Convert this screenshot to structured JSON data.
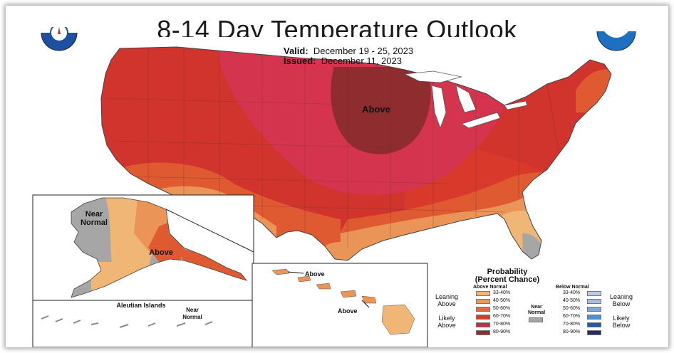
{
  "title": "8-14 Day Temperature Outlook",
  "valid_label": "Valid:",
  "valid_value": "December 19 - 25, 2023",
  "issued_label": "Issued:",
  "issued_value": "December 11, 2023",
  "map_labels": {
    "conus_above": "Above",
    "alaska_above": "Above",
    "alaska_near_1": "Near",
    "alaska_near_2": "Normal",
    "aleutian": "Aleutian Islands",
    "aleutian_near_1": "Near",
    "aleutian_near_2": "Normal",
    "hawaii_above_1": "Above",
    "hawaii_above_2": "Above"
  },
  "legend": {
    "title_1": "Probability",
    "title_2": "(Percent Chance)",
    "above_header": "Above Normal",
    "below_header": "Below Normal",
    "leaning_above_1": "Leaning",
    "leaning_above_2": "Above",
    "likely_above_1": "Likely",
    "likely_above_2": "Above",
    "leaning_below_1": "Leaning",
    "leaning_below_2": "Below",
    "likely_below_1": "Likely",
    "likely_below_2": "Below",
    "near_1": "Near",
    "near_2": "Normal",
    "ranges": [
      "33-40%",
      "40-50%",
      "50-60%",
      "60-70%",
      "70-80%",
      "80-90%"
    ],
    "above_colors": [
      "#f2b774",
      "#ec9a5a",
      "#e5693f",
      "#d8392b",
      "#c42d3a",
      "#8e2c2f"
    ],
    "below_colors": [
      "#bccae3",
      "#a6bde0",
      "#7fa7d9",
      "#4d8fd0",
      "#1f5aa8",
      "#222a6b"
    ],
    "near_color": "#a6a6a6"
  },
  "colors": {
    "cat_80_90": "#8e2c2f",
    "cat_70_80": "#d5344f",
    "cat_60_70": "#d0342c",
    "cat_50_60": "#e05a31",
    "cat_40_50": "#ea9458",
    "cat_33_40": "#f0b676",
    "near_normal": "#a6a6a6"
  }
}
